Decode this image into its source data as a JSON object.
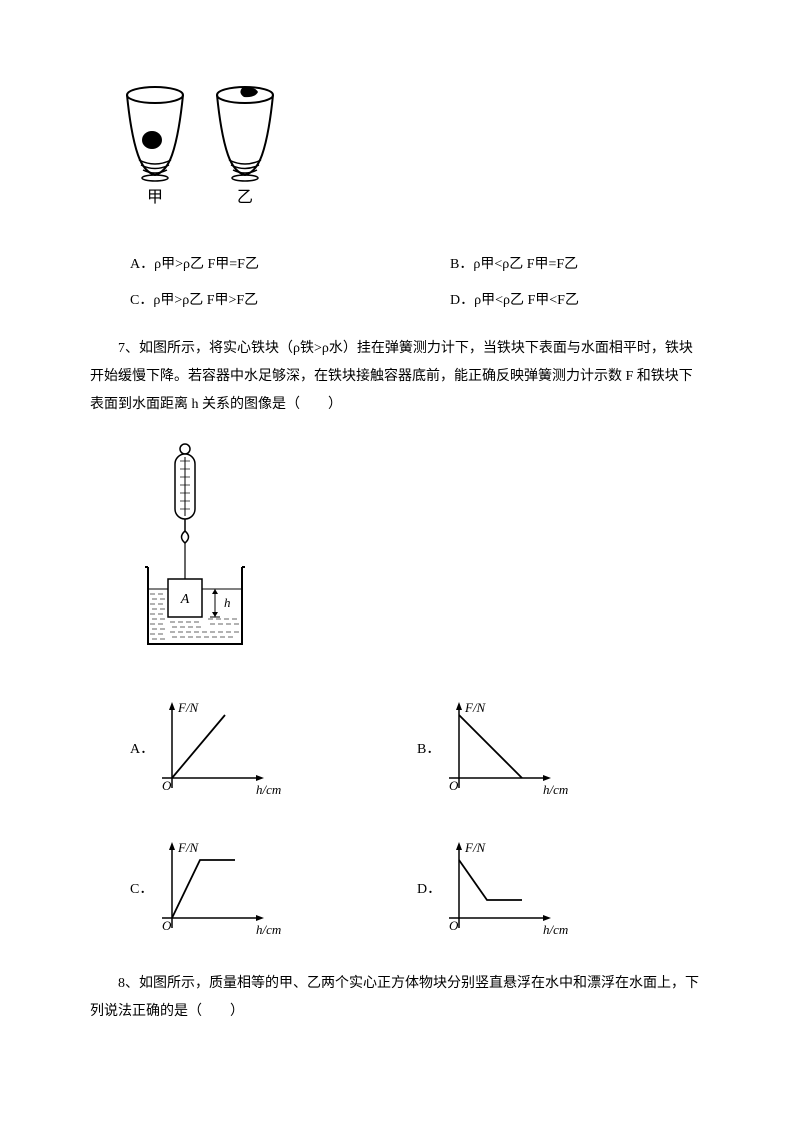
{
  "cups_figure": {
    "label_left": "甲",
    "label_right": "乙",
    "stroke": "#000000",
    "fill": "#ffffff"
  },
  "q6_options": {
    "A": "A．ρ甲>ρ乙 F甲=F乙",
    "B": "B．ρ甲<ρ乙 F甲=F乙",
    "C": "C．ρ甲>ρ乙 F甲>F乙",
    "D": "D．ρ甲<ρ乙 F甲<F乙"
  },
  "q7_text": "7、如图所示，将实心铁块（ρ铁>ρ水）挂在弹簧测力计下，当铁块下表面与水面相平时，铁块开始缓慢下降。若容器中水足够深，在铁块接触容器底前，能正确反映弹簧测力计示数 F 和铁块下表面到水面距离 h 关系的图像是（　　）",
  "spring_figure": {
    "block_label": "A",
    "depth_label": "h",
    "stroke": "#000000"
  },
  "q7_graphs": {
    "ylabel": "F/N",
    "xlabel": "h/cm",
    "origin_label": "O",
    "options": {
      "A": "A．",
      "B": "B．",
      "C": "C．",
      "D": "D．"
    },
    "axis_color": "#000000",
    "curves": {
      "A": [
        [
          12,
          78
        ],
        [
          65,
          15
        ]
      ],
      "B": [
        [
          12,
          15
        ],
        [
          75,
          78
        ]
      ],
      "C": [
        [
          12,
          78
        ],
        [
          40,
          20
        ],
        [
          75,
          20
        ]
      ],
      "D": [
        [
          12,
          20
        ],
        [
          40,
          60
        ],
        [
          75,
          60
        ]
      ]
    }
  },
  "q8_text": "8、如图所示，质量相等的甲、乙两个实心正方体物块分别竖直悬浮在水中和漂浮在水面上，下列说法正确的是（　　）"
}
